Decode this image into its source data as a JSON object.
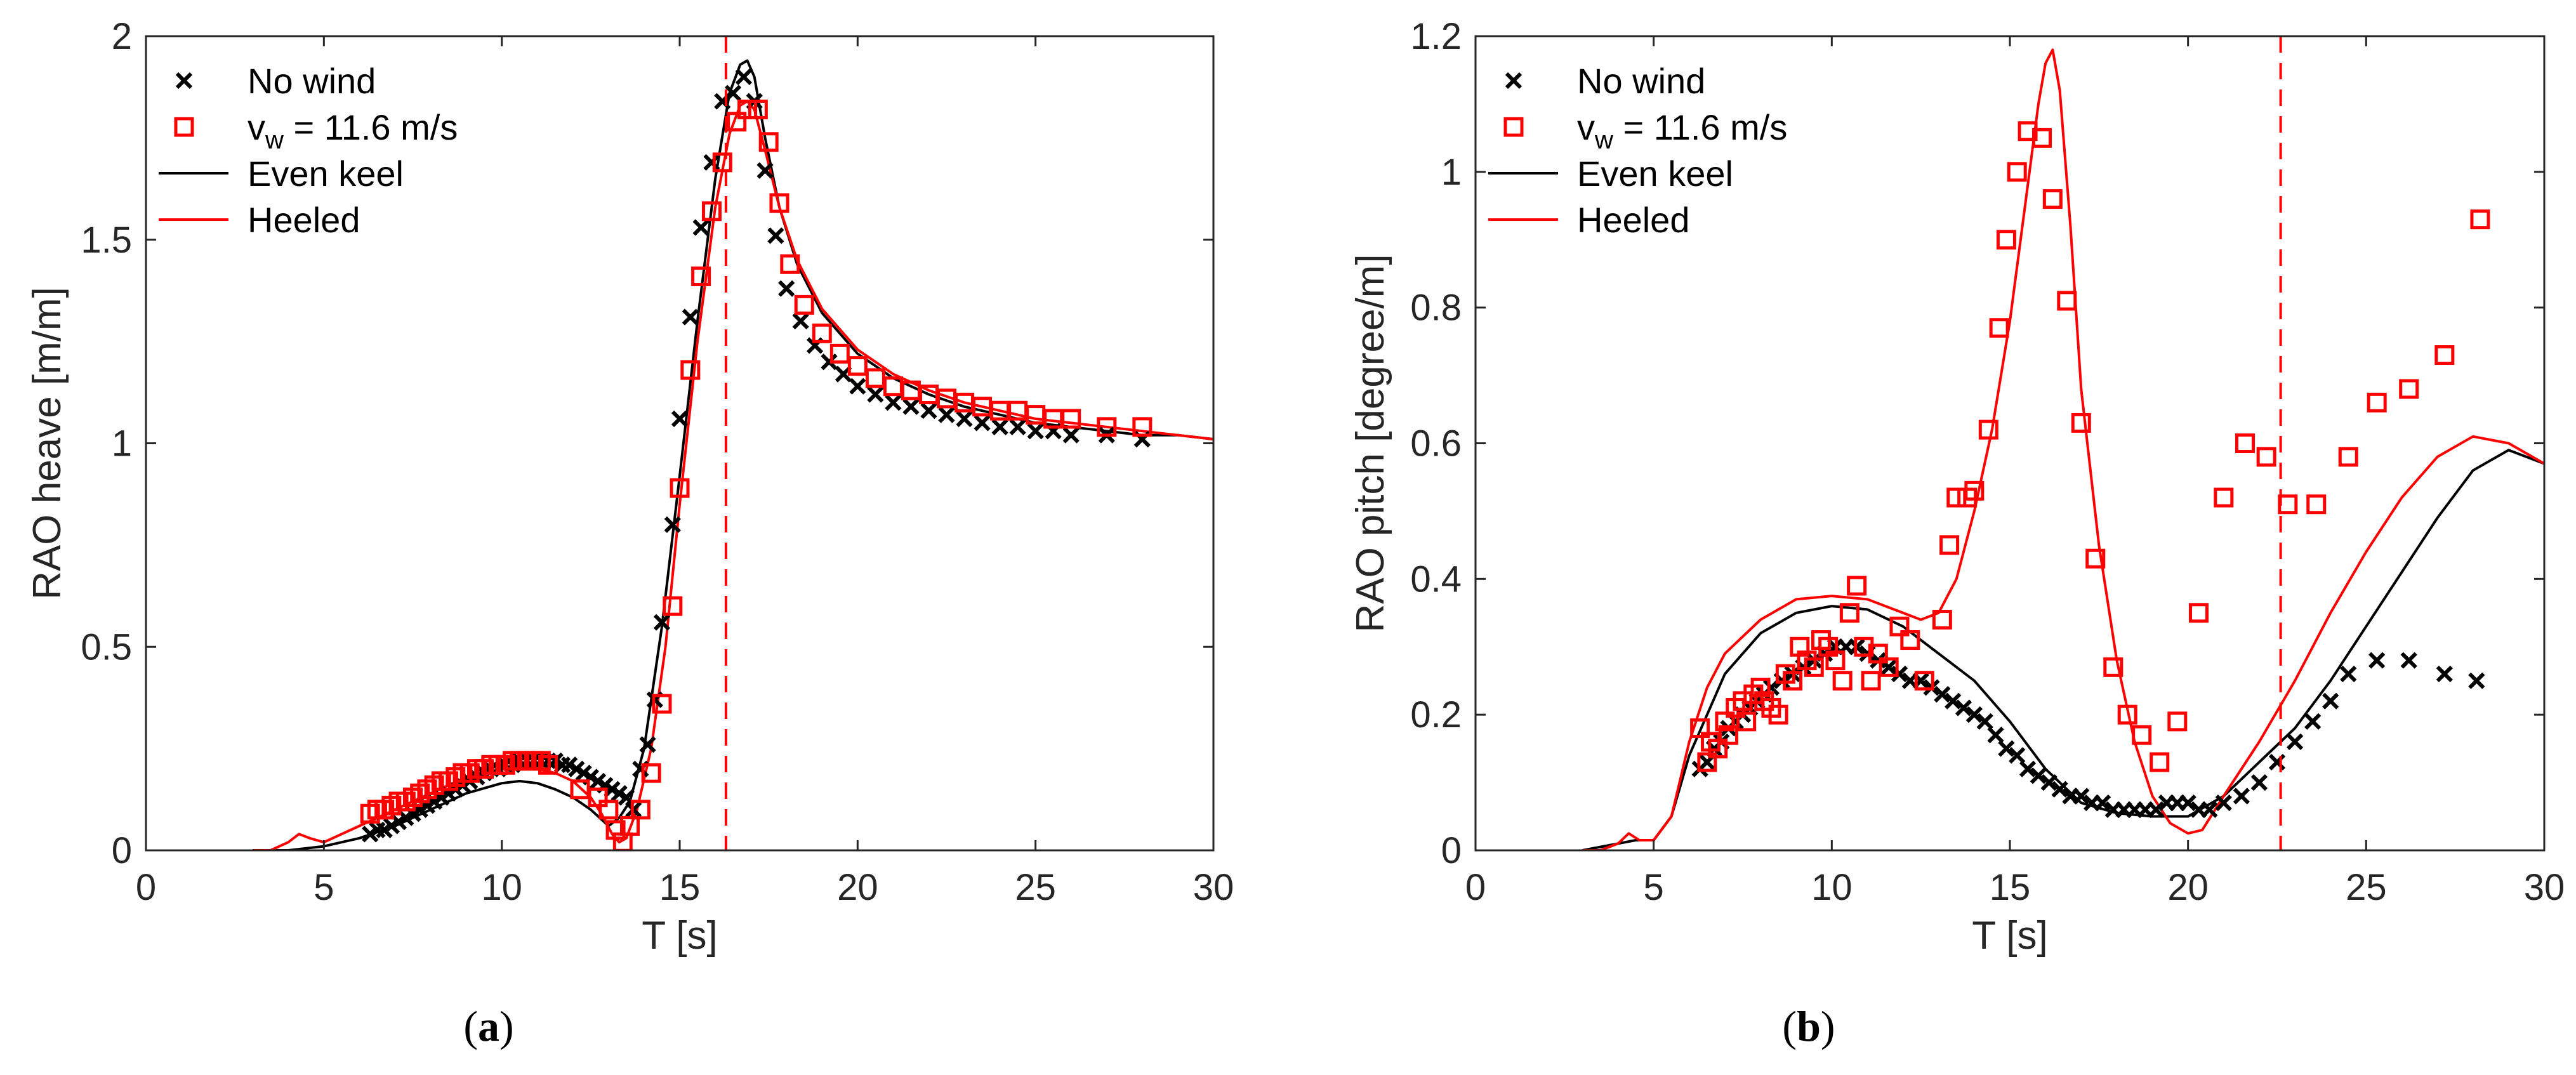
{
  "colors": {
    "black": "#000000",
    "red": "#ff0000",
    "axis": "#262626"
  },
  "chart_data": [
    {
      "type": "line",
      "panel": "a",
      "caption": {
        "open": "(",
        "letter": "a",
        "close": ")"
      },
      "xlabel": "T [s]",
      "ylabel": "RAO heave [m/m]",
      "xlim": [
        0,
        30
      ],
      "ylim": [
        0,
        2
      ],
      "xticks": [
        0,
        5,
        10,
        15,
        20,
        25,
        30
      ],
      "xtick_labels": [
        "0",
        "5",
        "10",
        "15",
        "20",
        "25",
        "30"
      ],
      "yticks": [
        0,
        0.5,
        1,
        1.5,
        2
      ],
      "ytick_labels": [
        "0",
        "0.5",
        "1",
        "1.5",
        "2"
      ],
      "vline": 16.3,
      "legend": {
        "position": "top-left",
        "entries": [
          "No wind",
          "v",
          "w",
          " = 11.6 m/s",
          "Even keel",
          "Heeled"
        ]
      },
      "series": [
        {
          "name": "No wind",
          "kind": "marker",
          "marker": "x",
          "color": "#000000",
          "x": [
            6.3,
            6.5,
            6.7,
            6.9,
            7.1,
            7.3,
            7.5,
            7.7,
            7.9,
            8.1,
            8.3,
            8.5,
            8.7,
            8.9,
            9.1,
            9.3,
            9.5,
            9.7,
            9.9,
            10.1,
            10.3,
            10.5,
            10.7,
            10.9,
            11.1,
            11.3,
            11.5,
            11.7,
            11.9,
            12.1,
            12.3,
            12.5,
            12.7,
            12.9,
            13.1,
            13.3,
            13.5,
            13.7,
            13.9,
            14.1,
            14.3,
            14.5,
            14.8,
            15.0,
            15.3,
            15.6,
            15.9,
            16.2,
            16.5,
            16.8,
            17.1,
            17.4,
            17.7,
            18.0,
            18.4,
            18.8,
            19.2,
            19.6,
            20.0,
            20.5,
            21.0,
            21.5,
            22.0,
            22.5,
            23.0,
            23.5,
            24.0,
            24.5,
            25.0,
            25.5,
            26.0,
            27.0,
            28.0
          ],
          "y": [
            0.04,
            0.05,
            0.05,
            0.06,
            0.07,
            0.08,
            0.09,
            0.1,
            0.11,
            0.12,
            0.13,
            0.14,
            0.15,
            0.16,
            0.17,
            0.18,
            0.19,
            0.2,
            0.2,
            0.21,
            0.21,
            0.22,
            0.22,
            0.22,
            0.22,
            0.22,
            0.22,
            0.21,
            0.21,
            0.2,
            0.19,
            0.18,
            0.17,
            0.16,
            0.15,
            0.14,
            0.13,
            0.1,
            0.2,
            0.26,
            0.37,
            0.56,
            0.8,
            1.06,
            1.31,
            1.53,
            1.69,
            1.84,
            1.86,
            1.9,
            1.84,
            1.67,
            1.51,
            1.38,
            1.3,
            1.24,
            1.2,
            1.17,
            1.14,
            1.12,
            1.1,
            1.09,
            1.08,
            1.07,
            1.06,
            1.05,
            1.04,
            1.04,
            1.03,
            1.03,
            1.02,
            1.02,
            1.01
          ]
        },
        {
          "name": "v_w = 11.6 m/s",
          "kind": "marker",
          "marker": "square",
          "color": "#ff0000",
          "x": [
            6.3,
            6.5,
            6.7,
            6.9,
            7.1,
            7.3,
            7.5,
            7.7,
            7.9,
            8.1,
            8.3,
            8.5,
            8.7,
            8.9,
            9.1,
            9.3,
            9.5,
            9.7,
            9.9,
            10.1,
            10.3,
            10.5,
            10.7,
            10.9,
            11.1,
            11.3,
            12.2,
            12.7,
            13.0,
            13.2,
            13.4,
            13.6,
            13.9,
            14.2,
            14.5,
            14.8,
            15.0,
            15.3,
            15.6,
            15.9,
            16.2,
            16.6,
            16.9,
            17.2,
            17.5,
            17.8,
            18.1,
            18.5,
            19.0,
            19.5,
            20.0,
            20.5,
            21.0,
            21.5,
            22.0,
            22.5,
            23.0,
            23.5,
            24.0,
            24.5,
            25.0,
            25.5,
            26.0,
            27.0,
            28.0
          ],
          "y": [
            0.09,
            0.1,
            0.1,
            0.11,
            0.12,
            0.12,
            0.13,
            0.14,
            0.15,
            0.16,
            0.17,
            0.17,
            0.18,
            0.19,
            0.19,
            0.2,
            0.2,
            0.21,
            0.21,
            0.21,
            0.22,
            0.22,
            0.22,
            0.22,
            0.22,
            0.21,
            0.15,
            0.13,
            0.1,
            0.05,
            0.02,
            0.06,
            0.1,
            0.19,
            0.36,
            0.6,
            0.89,
            1.18,
            1.41,
            1.57,
            1.69,
            1.79,
            1.82,
            1.82,
            1.74,
            1.59,
            1.44,
            1.34,
            1.27,
            1.22,
            1.19,
            1.16,
            1.14,
            1.13,
            1.12,
            1.11,
            1.1,
            1.09,
            1.08,
            1.08,
            1.07,
            1.06,
            1.06,
            1.04,
            1.04
          ]
        },
        {
          "name": "Even keel",
          "kind": "line",
          "color": "#000000",
          "x": [
            3.0,
            4.0,
            5.0,
            6.0,
            7.0,
            8.0,
            9.0,
            10.0,
            10.5,
            11.0,
            11.5,
            12.0,
            12.5,
            13.0,
            13.3,
            13.6,
            14.0,
            14.5,
            15.0,
            15.5,
            16.0,
            16.4,
            16.7,
            16.9,
            17.1,
            17.4,
            17.8,
            18.3,
            19.0,
            20.0,
            21.0,
            22.0,
            23.0,
            24.0,
            25.0,
            26.0,
            27.0,
            28.0,
            29.0,
            30.0
          ],
          "y": [
            0.0,
            0.0,
            0.01,
            0.03,
            0.06,
            0.1,
            0.14,
            0.165,
            0.17,
            0.165,
            0.15,
            0.13,
            0.1,
            0.06,
            0.08,
            0.12,
            0.25,
            0.55,
            0.92,
            1.3,
            1.65,
            1.86,
            1.93,
            1.94,
            1.9,
            1.75,
            1.58,
            1.44,
            1.32,
            1.22,
            1.16,
            1.12,
            1.09,
            1.07,
            1.05,
            1.04,
            1.03,
            1.02,
            1.02,
            1.01
          ]
        },
        {
          "name": "Heeled",
          "kind": "line",
          "color": "#ff0000",
          "x": [
            3.0,
            3.5,
            4.0,
            4.3,
            4.6,
            5.0,
            6.0,
            7.0,
            8.0,
            9.0,
            10.0,
            10.5,
            11.0,
            11.5,
            12.0,
            12.5,
            12.8,
            13.1,
            13.3,
            13.5,
            13.8,
            14.2,
            14.6,
            15.0,
            15.5,
            16.0,
            16.4,
            16.7,
            16.9,
            17.1,
            17.4,
            17.8,
            18.3,
            19.0,
            20.0,
            21.0,
            22.0,
            23.0,
            24.0,
            25.0,
            26.0,
            27.0,
            28.0,
            29.0,
            30.0
          ],
          "y": [
            0.0,
            0.0,
            0.02,
            0.04,
            0.03,
            0.02,
            0.06,
            0.1,
            0.14,
            0.18,
            0.2,
            0.205,
            0.2,
            0.19,
            0.17,
            0.13,
            0.09,
            0.04,
            0.02,
            0.03,
            0.1,
            0.25,
            0.5,
            0.85,
            1.25,
            1.58,
            1.76,
            1.83,
            1.84,
            1.82,
            1.72,
            1.58,
            1.45,
            1.33,
            1.23,
            1.17,
            1.13,
            1.1,
            1.08,
            1.06,
            1.05,
            1.04,
            1.03,
            1.02,
            1.01
          ]
        }
      ]
    },
    {
      "type": "line",
      "panel": "b",
      "caption": {
        "open": "(",
        "letter": "b",
        "close": ")"
      },
      "xlabel": "T [s]",
      "ylabel": "RAO pitch [degree/m]",
      "xlim": [
        0,
        30
      ],
      "ylim": [
        0,
        1.2
      ],
      "xticks": [
        0,
        5,
        10,
        15,
        20,
        25,
        30
      ],
      "xtick_labels": [
        "0",
        "5",
        "10",
        "15",
        "20",
        "25",
        "30"
      ],
      "yticks": [
        0,
        0.2,
        0.4,
        0.6,
        0.8,
        1,
        1.2
      ],
      "ytick_labels": [
        "0",
        "0.2",
        "0.4",
        "0.6",
        "0.8",
        "1",
        "1.2"
      ],
      "vline": 22.6,
      "legend": {
        "position": "top-left",
        "entries": [
          "No wind",
          "v",
          "w",
          " = 11.6 m/s",
          "Even keel",
          "Heeled"
        ]
      },
      "series": [
        {
          "name": "No wind",
          "kind": "marker",
          "marker": "x",
          "color": "#000000",
          "x": [
            6.3,
            6.5,
            6.7,
            6.9,
            7.1,
            7.3,
            7.5,
            7.7,
            7.9,
            8.1,
            8.3,
            8.6,
            8.9,
            9.2,
            9.5,
            9.8,
            10.1,
            10.4,
            10.7,
            11.0,
            11.3,
            11.6,
            11.9,
            12.2,
            12.5,
            12.8,
            13.1,
            13.4,
            13.7,
            14.0,
            14.3,
            14.6,
            14.9,
            15.2,
            15.5,
            15.8,
            16.1,
            16.4,
            16.7,
            17.0,
            17.3,
            17.6,
            17.9,
            18.2,
            18.5,
            18.8,
            19.1,
            19.4,
            19.7,
            20.0,
            20.3,
            20.6,
            21.0,
            21.5,
            22.0,
            22.5,
            23.0,
            23.5,
            24.0,
            24.5,
            25.3,
            26.2,
            27.2,
            28.1
          ],
          "y": [
            0.12,
            0.13,
            0.15,
            0.16,
            0.18,
            0.19,
            0.2,
            0.21,
            0.22,
            0.23,
            0.24,
            0.25,
            0.26,
            0.27,
            0.28,
            0.29,
            0.3,
            0.3,
            0.3,
            0.29,
            0.28,
            0.27,
            0.26,
            0.25,
            0.25,
            0.24,
            0.23,
            0.22,
            0.21,
            0.2,
            0.19,
            0.17,
            0.15,
            0.14,
            0.12,
            0.11,
            0.1,
            0.09,
            0.08,
            0.08,
            0.07,
            0.07,
            0.06,
            0.06,
            0.06,
            0.06,
            0.06,
            0.07,
            0.07,
            0.07,
            0.06,
            0.06,
            0.07,
            0.08,
            0.1,
            0.13,
            0.16,
            0.19,
            0.22,
            0.26,
            0.28,
            0.28,
            0.26,
            0.25
          ]
        },
        {
          "name": "v_w = 11.6 m/s",
          "kind": "marker",
          "marker": "square",
          "color": "#ff0000",
          "x": [
            6.3,
            6.5,
            6.6,
            6.8,
            7.0,
            7.1,
            7.3,
            7.5,
            7.6,
            7.8,
            8.0,
            8.1,
            8.3,
            8.5,
            8.7,
            8.9,
            9.1,
            9.3,
            9.5,
            9.7,
            9.9,
            10.1,
            10.3,
            10.5,
            10.7,
            10.9,
            11.1,
            11.3,
            11.6,
            11.9,
            12.2,
            12.6,
            13.1,
            13.3,
            13.5,
            13.8,
            14.0,
            14.4,
            14.7,
            14.9,
            15.2,
            15.5,
            15.9,
            16.2,
            16.6,
            17.0,
            17.4,
            17.9,
            18.3,
            18.7,
            19.2,
            19.7,
            20.3,
            21.0,
            21.6,
            22.2,
            22.8,
            23.6,
            24.5,
            25.3,
            26.2,
            27.2,
            28.2
          ],
          "y": [
            0.18,
            0.13,
            0.16,
            0.15,
            0.19,
            0.17,
            0.21,
            0.22,
            0.19,
            0.23,
            0.24,
            0.22,
            0.21,
            0.2,
            0.26,
            0.25,
            0.3,
            0.28,
            0.27,
            0.31,
            0.3,
            0.28,
            0.25,
            0.35,
            0.39,
            0.3,
            0.25,
            0.29,
            0.27,
            0.33,
            0.31,
            0.25,
            0.34,
            0.45,
            0.52,
            0.52,
            0.53,
            0.62,
            0.77,
            0.9,
            1.0,
            1.06,
            1.05,
            0.96,
            0.81,
            0.63,
            0.43,
            0.27,
            0.2,
            0.17,
            0.13,
            0.19,
            0.35,
            0.52,
            0.6,
            0.58,
            0.51,
            0.51,
            0.58,
            0.66,
            0.68,
            0.73,
            0.93
          ]
        },
        {
          "name": "Even keel",
          "kind": "line",
          "color": "#000000",
          "x": [
            3.0,
            4.0,
            4.5,
            5.0,
            5.5,
            6.0,
            6.5,
            7.0,
            8.0,
            9.0,
            10.0,
            11.0,
            12.0,
            13.0,
            14.0,
            15.0,
            16.0,
            17.0,
            18.0,
            19.0,
            20.0,
            21.0,
            22.0,
            23.0,
            24.0,
            25.0,
            26.0,
            27.0,
            28.0,
            29.0,
            30.0
          ],
          "y": [
            0.0,
            0.01,
            0.015,
            0.015,
            0.05,
            0.14,
            0.2,
            0.26,
            0.32,
            0.35,
            0.36,
            0.355,
            0.33,
            0.29,
            0.25,
            0.19,
            0.12,
            0.07,
            0.055,
            0.05,
            0.05,
            0.08,
            0.13,
            0.18,
            0.25,
            0.33,
            0.41,
            0.49,
            0.56,
            0.59,
            0.57
          ]
        },
        {
          "name": "Heeled",
          "kind": "line",
          "color": "#ff0000",
          "x": [
            3.0,
            3.5,
            4.0,
            4.3,
            4.6,
            5.0,
            5.5,
            6.0,
            6.5,
            7.0,
            8.0,
            9.0,
            10.0,
            11.0,
            12.0,
            12.5,
            13.0,
            13.5,
            14.0,
            14.5,
            15.0,
            15.5,
            15.8,
            16.0,
            16.2,
            16.4,
            16.7,
            17.0,
            17.5,
            18.0,
            18.5,
            19.0,
            19.5,
            20.0,
            20.4,
            21.0,
            22.0,
            23.0,
            24.0,
            25.0,
            26.0,
            27.0,
            28.0,
            29.0,
            30.0
          ],
          "y": [
            0.0,
            0.0,
            0.01,
            0.025,
            0.015,
            0.015,
            0.05,
            0.16,
            0.24,
            0.29,
            0.34,
            0.37,
            0.375,
            0.37,
            0.35,
            0.34,
            0.35,
            0.4,
            0.5,
            0.62,
            0.78,
            0.98,
            1.1,
            1.16,
            1.18,
            1.12,
            0.92,
            0.68,
            0.45,
            0.28,
            0.16,
            0.08,
            0.04,
            0.025,
            0.03,
            0.08,
            0.16,
            0.25,
            0.35,
            0.44,
            0.52,
            0.58,
            0.61,
            0.6,
            0.57
          ]
        }
      ]
    }
  ]
}
